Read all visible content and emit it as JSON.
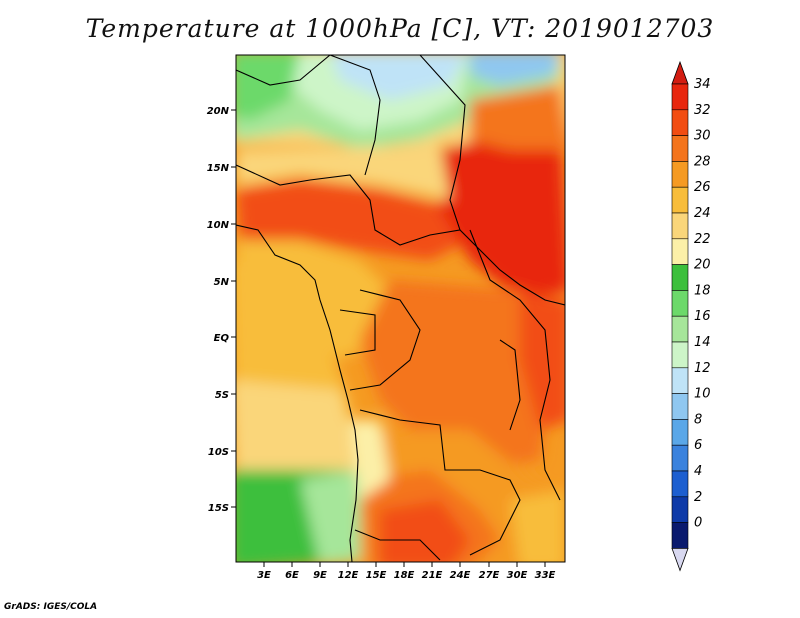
{
  "title": "Temperature at 1000hPa [C], VT: 2019012703",
  "credit": "GrADS: IGES/COLA",
  "map": {
    "lat_labels": [
      "20N",
      "15N",
      "10N",
      "5N",
      "EQ",
      "5S",
      "10S",
      "15S"
    ],
    "lon_labels": [
      "3E",
      "6E",
      "9E",
      "12E",
      "15E",
      "18E",
      "21E",
      "24E",
      "27E",
      "30E",
      "33E"
    ]
  },
  "colorbar": {
    "labels": [
      "34",
      "32",
      "30",
      "28",
      "26",
      "24",
      "22",
      "20",
      "18",
      "16",
      "14",
      "12",
      "10",
      "8",
      "6",
      "4",
      "2",
      "0"
    ],
    "colors": [
      "#e8260e",
      "#f24d12",
      "#f4741c",
      "#f59a22",
      "#f8bd3a",
      "#fad67a",
      "#fcf0a8",
      "#3cbf3c",
      "#6cd96a",
      "#a6e69a",
      "#cdf5c8",
      "#bfe3f7",
      "#8fc7f0",
      "#5aa7e8",
      "#3a82dd",
      "#1d5fd0",
      "#0e3aa8",
      "#0a1a6e"
    ],
    "top_arrow_color": "#d31d12",
    "bottom_arrow_color": "#d8d8f0"
  }
}
